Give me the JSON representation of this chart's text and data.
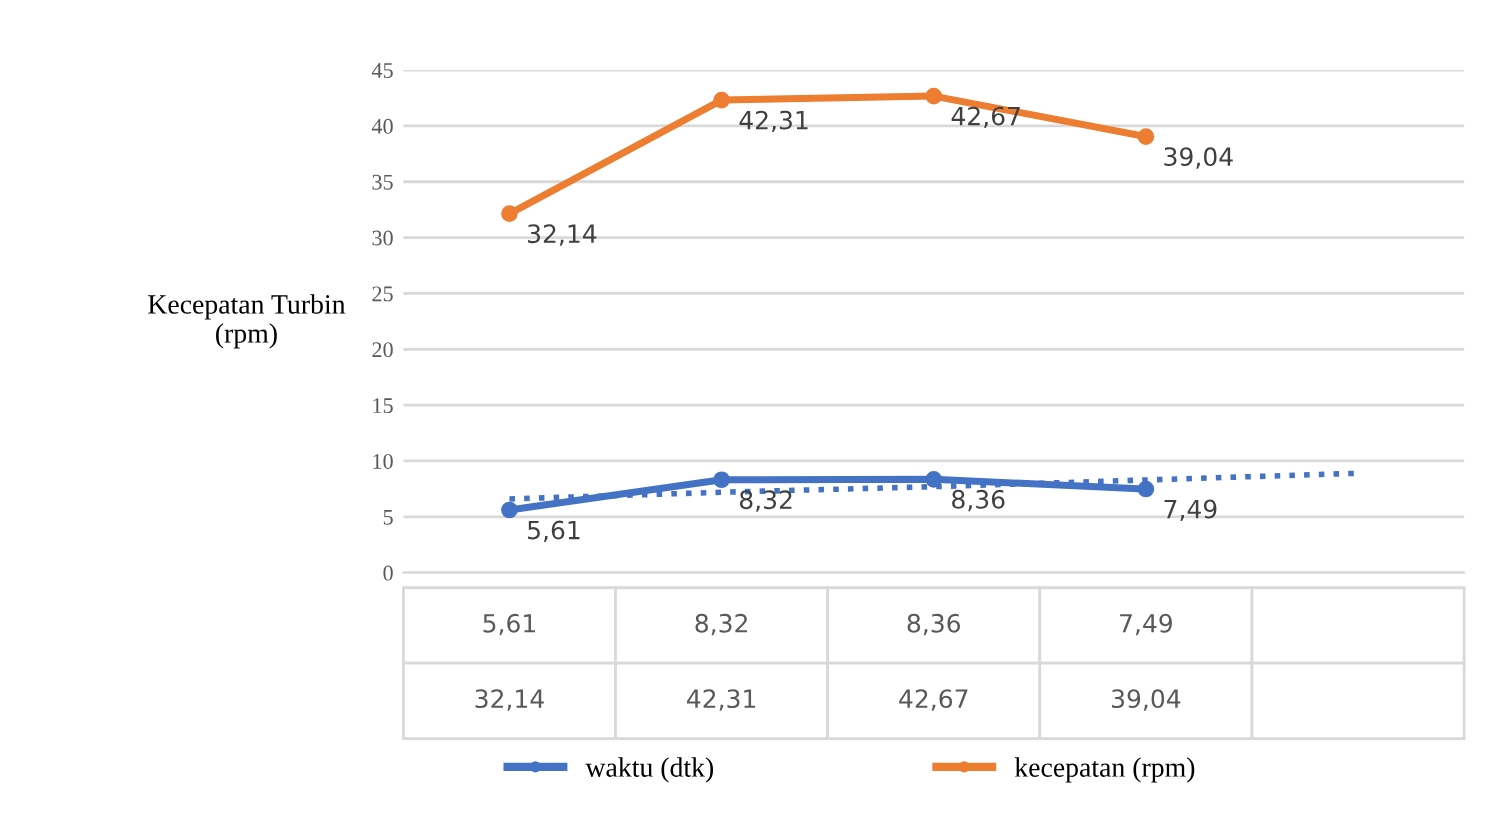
{
  "chart_data": {
    "type": "line",
    "ylabel": "Kecepatan Turbin\n(rpm)",
    "categories": [
      null,
      null,
      null,
      null,
      null
    ],
    "series": [
      {
        "name": "waktu (dtk)",
        "color": "#4472c4",
        "marker": "circle",
        "line_style": "solid",
        "values": [
          5.61,
          8.32,
          8.36,
          7.49,
          null
        ],
        "value_labels": [
          "5,61",
          "8,32",
          "8,36",
          "7,49",
          null
        ]
      },
      {
        "name": "kecepatan (rpm)",
        "color": "#ed7d31",
        "marker": "circle",
        "line_style": "solid",
        "values": [
          32.14,
          42.31,
          42.67,
          39.04,
          null
        ],
        "value_labels": [
          "32,14",
          "42,31",
          "42,67",
          "39,04",
          null
        ]
      },
      {
        "color": "#4472c4",
        "marker": "none",
        "line_style": "dotted",
        "values": [
          6.6,
          7.2,
          7.7,
          8.3,
          8.9
        ]
      }
    ],
    "ylim": [
      0,
      45
    ],
    "yticks": [
      0,
      5,
      10,
      15,
      20,
      25,
      30,
      35,
      40,
      45
    ],
    "grid": "y",
    "legend": "bottom",
    "tick_labels": "y"
  }
}
